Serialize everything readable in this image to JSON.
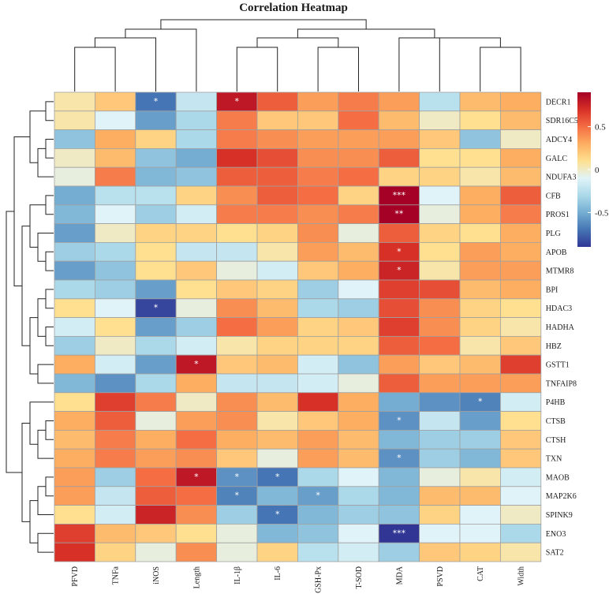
{
  "chart_data": {
    "type": "heatmap",
    "title": "Correlation Heatmap",
    "columns": [
      "PFVD",
      "TNFa",
      "iNOS",
      "Length",
      "IL-1β",
      "IL-6",
      "GSH-Px",
      "T-SOD",
      "MDA",
      "PSVD",
      "CAT",
      "Width"
    ],
    "rows": [
      "DECR1",
      "SDR16C5",
      "ADCY4",
      "GALC",
      "NDUFA3",
      "CFB",
      "PROS1",
      "PLG",
      "APOB",
      "MTMR8",
      "BPI",
      "HDAC3",
      "HADHA",
      "HBZ",
      "GSTT1",
      "TNFAIP8",
      "P4HB",
      "CTSB",
      "CTSH",
      "TXN",
      "MAOB",
      "MAP2K6",
      "SPINK9",
      "ENO3",
      "SAT2"
    ],
    "values": [
      [
        0.05,
        0.2,
        -0.7,
        -0.2,
        0.8,
        0.55,
        0.35,
        0.45,
        0.35,
        -0.25,
        0.25,
        0.3
      ],
      [
        0.05,
        -0.1,
        -0.55,
        -0.3,
        0.45,
        0.2,
        0.2,
        0.5,
        0.25,
        0.0,
        0.1,
        0.25
      ],
      [
        -0.4,
        0.3,
        0.15,
        -0.3,
        0.45,
        0.4,
        0.35,
        0.35,
        0.35,
        0.2,
        -0.4,
        0.0
      ],
      [
        0.0,
        0.25,
        -0.4,
        -0.5,
        0.7,
        0.6,
        0.4,
        0.4,
        0.55,
        0.1,
        0.1,
        0.3
      ],
      [
        -0.05,
        0.45,
        -0.45,
        -0.4,
        0.55,
        0.55,
        0.45,
        0.5,
        0.15,
        0.15,
        0.05,
        0.25
      ],
      [
        -0.5,
        -0.25,
        -0.25,
        0.15,
        0.4,
        0.55,
        0.5,
        0.15,
        0.9,
        -0.1,
        0.3,
        0.55
      ],
      [
        -0.45,
        -0.1,
        -0.35,
        -0.15,
        0.45,
        0.45,
        0.4,
        0.45,
        0.9,
        -0.05,
        0.3,
        0.45
      ],
      [
        -0.55,
        0.0,
        0.15,
        0.15,
        0.1,
        0.15,
        0.4,
        -0.05,
        0.55,
        0.15,
        0.1,
        0.3
      ],
      [
        -0.35,
        -0.3,
        0.1,
        -0.2,
        -0.2,
        0.05,
        0.35,
        0.25,
        0.7,
        0.1,
        0.35,
        0.3
      ],
      [
        -0.55,
        -0.4,
        0.1,
        0.2,
        -0.05,
        -0.15,
        0.2,
        0.3,
        0.75,
        0.05,
        0.35,
        0.35
      ],
      [
        -0.3,
        -0.35,
        -0.55,
        0.1,
        0.2,
        0.15,
        -0.35,
        -0.1,
        0.65,
        0.6,
        0.25,
        0.3
      ],
      [
        0.1,
        -0.1,
        -0.85,
        -0.05,
        0.4,
        0.25,
        -0.3,
        -0.35,
        0.6,
        0.4,
        0.15,
        0.1
      ],
      [
        -0.15,
        0.1,
        -0.55,
        -0.35,
        0.5,
        0.35,
        0.15,
        0.2,
        0.65,
        0.4,
        0.15,
        0.05
      ],
      [
        -0.35,
        0.0,
        -0.3,
        -0.15,
        0.05,
        0.15,
        0.15,
        0.15,
        0.55,
        0.5,
        0.05,
        0.2
      ],
      [
        0.3,
        -0.15,
        -0.55,
        0.8,
        0.2,
        0.25,
        -0.15,
        -0.4,
        0.35,
        0.2,
        0.25,
        0.65
      ],
      [
        -0.45,
        -0.6,
        -0.3,
        0.3,
        -0.2,
        -0.2,
        -0.15,
        -0.05,
        0.55,
        0.35,
        0.35,
        0.35
      ],
      [
        0.1,
        0.65,
        0.45,
        0.0,
        0.4,
        0.25,
        0.7,
        0.3,
        -0.5,
        -0.6,
        -0.65,
        -0.15
      ],
      [
        0.3,
        0.55,
        -0.05,
        0.35,
        0.4,
        0.05,
        0.2,
        0.3,
        -0.6,
        -0.2,
        -0.55,
        0.1
      ],
      [
        0.25,
        0.45,
        0.3,
        0.5,
        0.3,
        0.25,
        0.35,
        0.25,
        -0.45,
        -0.35,
        -0.35,
        0.2
      ],
      [
        0.3,
        0.45,
        0.35,
        0.4,
        0.2,
        -0.05,
        0.35,
        0.25,
        -0.6,
        -0.35,
        -0.45,
        0.2
      ],
      [
        0.35,
        -0.35,
        0.5,
        0.8,
        -0.6,
        -0.7,
        -0.3,
        -0.1,
        -0.45,
        -0.05,
        0.05,
        -0.15
      ],
      [
        0.35,
        -0.2,
        0.55,
        0.5,
        -0.65,
        -0.45,
        -0.55,
        -0.3,
        -0.45,
        0.25,
        0.25,
        -0.1
      ],
      [
        0.1,
        -0.15,
        0.75,
        0.4,
        -0.35,
        -0.7,
        -0.45,
        -0.35,
        -0.4,
        0.15,
        -0.1,
        0.0
      ],
      [
        0.65,
        0.25,
        0.2,
        0.1,
        -0.05,
        -0.45,
        -0.4,
        -0.1,
        -0.95,
        -0.1,
        -0.1,
        -0.3
      ],
      [
        0.7,
        0.15,
        -0.05,
        0.4,
        -0.05,
        0.15,
        -0.25,
        -0.15,
        -0.35,
        0.2,
        0.15,
        0.05
      ]
    ],
    "significance": [
      {
        "row": "DECR1",
        "col": "iNOS",
        "mark": "*"
      },
      {
        "row": "DECR1",
        "col": "IL-1β",
        "mark": "*"
      },
      {
        "row": "CFB",
        "col": "MDA",
        "mark": "***"
      },
      {
        "row": "PROS1",
        "col": "MDA",
        "mark": "**"
      },
      {
        "row": "APOB",
        "col": "MDA",
        "mark": "*"
      },
      {
        "row": "MTMR8",
        "col": "MDA",
        "mark": "*"
      },
      {
        "row": "HDAC3",
        "col": "iNOS",
        "mark": "*"
      },
      {
        "row": "GSTT1",
        "col": "Length",
        "mark": "*"
      },
      {
        "row": "P4HB",
        "col": "CAT",
        "mark": "*"
      },
      {
        "row": "CTSB",
        "col": "MDA",
        "mark": "*"
      },
      {
        "row": "TXN",
        "col": "MDA",
        "mark": "*"
      },
      {
        "row": "MAOB",
        "col": "Length",
        "mark": "*"
      },
      {
        "row": "MAOB",
        "col": "IL-1β",
        "mark": "*"
      },
      {
        "row": "MAOB",
        "col": "IL-6",
        "mark": "*"
      },
      {
        "row": "MAP2K6",
        "col": "IL-1β",
        "mark": "*"
      },
      {
        "row": "MAP2K6",
        "col": "GSH-Px",
        "mark": "*"
      },
      {
        "row": "SPINK9",
        "col": "IL-6",
        "mark": "*"
      },
      {
        "row": "ENO3",
        "col": "MDA",
        "mark": "***"
      }
    ],
    "color_scale": {
      "min": -0.9,
      "max": 0.9,
      "stops": [
        "#313695",
        "#4575b4",
        "#74add1",
        "#abd9e9",
        "#e0f3f8",
        "#fee090",
        "#fdae61",
        "#f46d43",
        "#d73027",
        "#a50026"
      ]
    },
    "legend": {
      "position": "right",
      "ticks": [
        {
          "value": 0.5,
          "label": "0.5"
        },
        {
          "value": 0,
          "label": "0"
        },
        {
          "value": -0.5,
          "label": "-0.5"
        }
      ]
    },
    "cell_border_color": "#a0a0a0"
  }
}
